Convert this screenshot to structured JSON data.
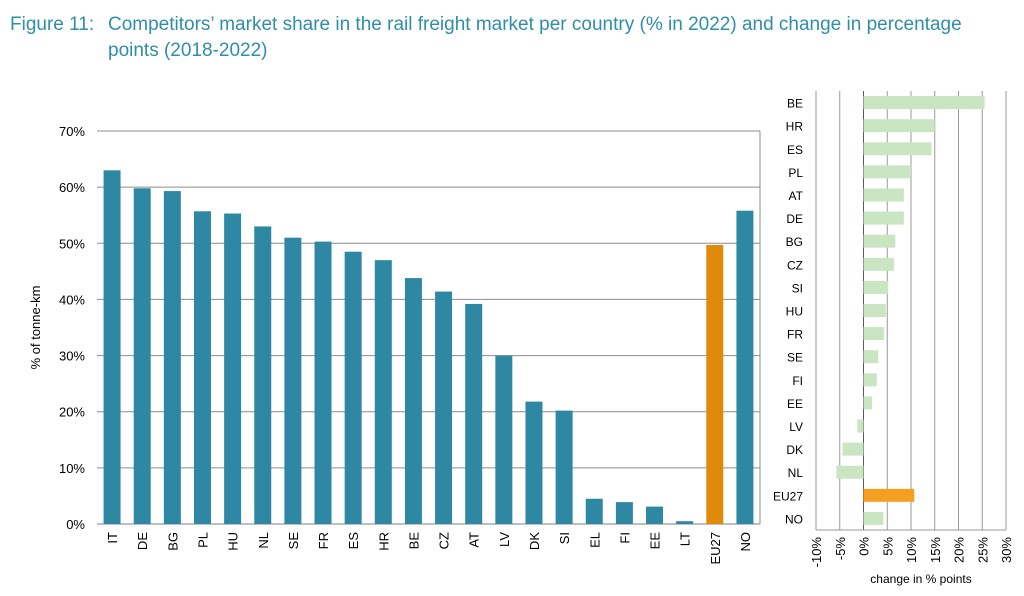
{
  "figure_label": "Figure 11:",
  "title_line1": "Competitors’ market share in the rail freight market per country (% in 2022) and change in percentage",
  "title_line2": "points (2018-2022)",
  "chart_data": [
    {
      "type": "bar",
      "orientation": "vertical",
      "ylabel": "% of tonne-km",
      "ylim": [
        0,
        70
      ],
      "yticks": [
        "0%",
        "10%",
        "20%",
        "30%",
        "40%",
        "50%",
        "60%",
        "70%"
      ],
      "grid": true,
      "categories": [
        "IT",
        "DE",
        "BG",
        "PL",
        "HU",
        "NL",
        "SE",
        "FR",
        "ES",
        "HR",
        "BE",
        "CZ",
        "AT",
        "LV",
        "DK",
        "SI",
        "EL",
        "FI",
        "EE",
        "LT",
        "EU27",
        "NO"
      ],
      "values": [
        63,
        59.8,
        59.3,
        55.7,
        55.3,
        53,
        51,
        50.3,
        48.5,
        47,
        43.8,
        41.4,
        39.2,
        30,
        21.8,
        20.2,
        4.5,
        3.9,
        3.1,
        0.5,
        49.7,
        55.8
      ],
      "colors": {
        "default": "#2e88a4",
        "highlight": "#e08a0c",
        "highlight_category": "EU27"
      }
    },
    {
      "type": "bar",
      "orientation": "horizontal",
      "xlabel": "change in % points",
      "xlim": [
        -10,
        30
      ],
      "xticks": [
        "-10%",
        "-5%",
        "0%",
        "5%",
        "10%",
        "15%",
        "20%",
        "25%",
        "30%"
      ],
      "grid": true,
      "categories": [
        "BE",
        "HR",
        "ES",
        "PL",
        "AT",
        "DE",
        "BG",
        "CZ",
        "SI",
        "HU",
        "FR",
        "SE",
        "FI",
        "EE",
        "LV",
        "DK",
        "NL",
        "EU27",
        "NO"
      ],
      "values": [
        25.5,
        15,
        14.3,
        10,
        8.5,
        8.5,
        6.7,
        6.4,
        5.2,
        4.7,
        4.3,
        3.1,
        2.8,
        1.8,
        -1.3,
        -4.4,
        -5.7,
        10.7,
        4.2
      ],
      "colors": {
        "default": "#c9e5c2",
        "highlight": "#f4a020",
        "highlight_category": "EU27"
      }
    }
  ]
}
